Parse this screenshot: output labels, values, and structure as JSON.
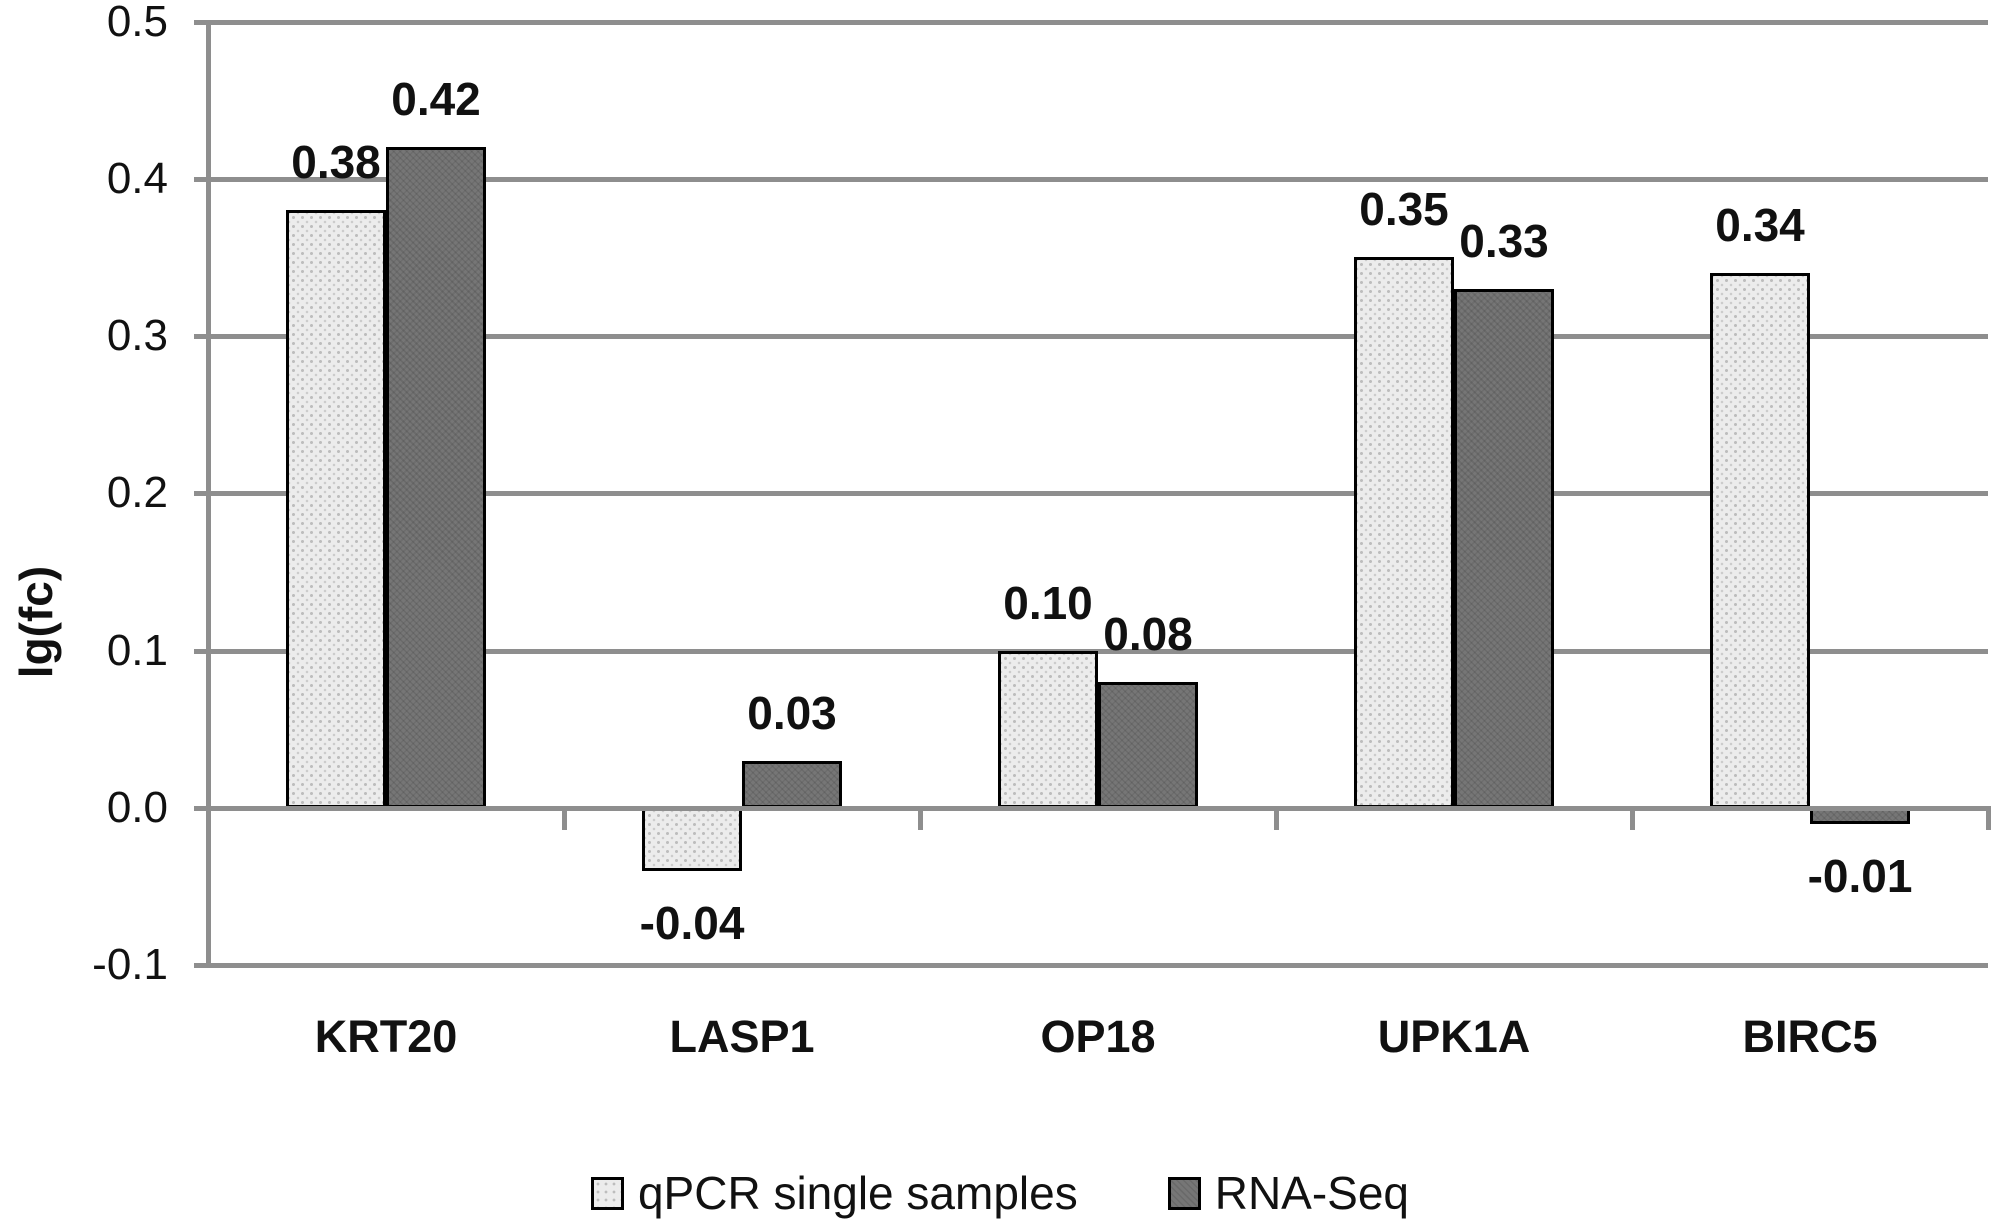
{
  "chart_data": {
    "type": "bar",
    "title": "",
    "ylabel": "lg(fc)",
    "xlabel": "",
    "categories": [
      "KRT20",
      "LASP1",
      "OP18",
      "UPK1A",
      "BIRC5"
    ],
    "series": [
      {
        "name": "qPCR single samples",
        "color": "#ececec",
        "pattern": "dotted",
        "values": [
          0.38,
          -0.04,
          0.1,
          0.35,
          0.34
        ],
        "labels": [
          "0.38",
          "-0.04",
          "0.10",
          "0.35",
          "0.34"
        ]
      },
      {
        "name": "RNA-Seq",
        "color": "#767676",
        "pattern": "crosshatch",
        "values": [
          0.42,
          0.03,
          0.08,
          0.33,
          -0.01
        ],
        "labels": [
          "0.42",
          "0.03",
          "0.08",
          "0.33",
          "-0.01"
        ]
      }
    ],
    "y_ticks": [
      "0.5",
      "0.4",
      "0.3",
      "0.2",
      "0.1",
      "0.0",
      "-0.1"
    ],
    "ylim": [
      -0.1,
      0.5
    ],
    "grid": true,
    "legend_position": "bottom-center"
  },
  "colors": {
    "gridline": "#8e8e8e",
    "axis": "#8e8e8e",
    "bar_border": "#000000",
    "text": "#111111",
    "background": "#ffffff"
  }
}
